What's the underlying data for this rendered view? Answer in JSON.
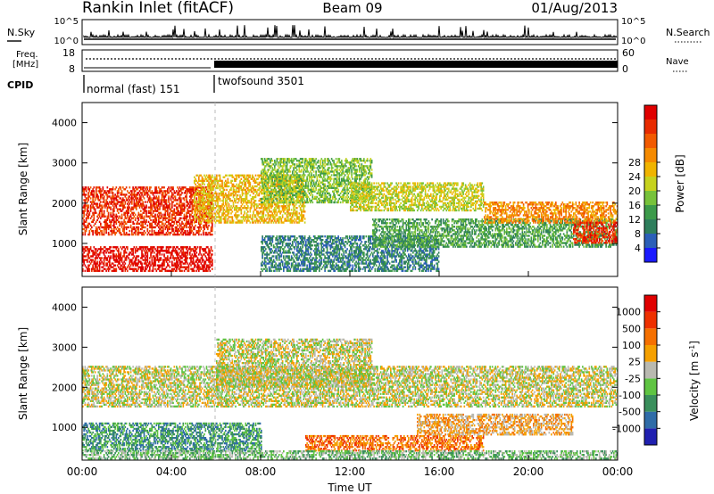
{
  "header": {
    "title": "Rankin Inlet (fitACF)",
    "beam": "Beam 09",
    "date": "01/Aug/2013"
  },
  "noise_panel": {
    "left_label": "N.Sky",
    "right_label": "N.Search",
    "left_ticks": [
      "10^5",
      "10^0"
    ],
    "right_ticks": [
      "10^5",
      "10^0"
    ]
  },
  "freq_panel": {
    "left_label_1": "Freq.",
    "left_label_2": "[MHz]",
    "right_label": "Nave",
    "left_ticks": [
      "18",
      "8"
    ],
    "right_ticks": [
      "60",
      "0"
    ]
  },
  "cpid": {
    "label": "CPID",
    "modes": [
      {
        "name": "normal (fast) 151",
        "start": "00:00",
        "end": "06:00"
      },
      {
        "name": "twofsound 3501",
        "start": "06:00",
        "end": "00:00"
      }
    ]
  },
  "x_axis": {
    "label": "Time UT",
    "ticks": [
      "00:00",
      "04:00",
      "08:00",
      "12:00",
      "16:00",
      "20:00",
      "00:00"
    ]
  },
  "chart_data": [
    {
      "type": "heatmap",
      "ylabel": "Slant Range [km]",
      "yticks": [
        1000,
        2000,
        3000,
        4000
      ],
      "ylim": [
        180,
        4500
      ],
      "xlim": [
        0,
        24
      ],
      "colorbar": {
        "label": "Power [dB]",
        "ticks": [
          "4",
          "8",
          "12",
          "16",
          "20",
          "24",
          "28"
        ],
        "colors": [
          "#1a1aff",
          "#2b5fb8",
          "#2e7e5c",
          "#3c9a4a",
          "#77c23a",
          "#c6d21e",
          "#f0b400",
          "#f58a00",
          "#f25a00",
          "#e82b00",
          "#e00000"
        ]
      },
      "bands": [
        {
          "t0": 0,
          "t1": 5.8,
          "r0": 1200,
          "r1": 2400,
          "level": 9
        },
        {
          "t0": 0,
          "t1": 5.8,
          "r0": 300,
          "r1": 900,
          "level": 10
        },
        {
          "t0": 5,
          "t1": 10,
          "r0": 1500,
          "r1": 2700,
          "level": 6
        },
        {
          "t0": 8,
          "t1": 13,
          "r0": 2000,
          "r1": 3100,
          "level": 4
        },
        {
          "t0": 8,
          "t1": 16,
          "r0": 300,
          "r1": 1200,
          "level": 2
        },
        {
          "t0": 12,
          "t1": 18,
          "r0": 1800,
          "r1": 2500,
          "level": 5
        },
        {
          "t0": 13,
          "t1": 24,
          "r0": 900,
          "r1": 1600,
          "level": 3
        },
        {
          "t0": 18,
          "t1": 24,
          "r0": 1500,
          "r1": 2000,
          "level": 7
        },
        {
          "t0": 22,
          "t1": 24,
          "r0": 1000,
          "r1": 1500,
          "level": 9
        }
      ]
    },
    {
      "type": "heatmap",
      "ylabel": "Slant Range [km]",
      "yticks": [
        1000,
        2000,
        3000,
        4000
      ],
      "ylim": [
        180,
        4500
      ],
      "xlim": [
        0,
        24
      ],
      "colorbar": {
        "label": "Velocity [m s^-1]",
        "ticks": [
          "1000",
          "500",
          "100",
          "25",
          "-25",
          "-100",
          "-500",
          "-1000"
        ],
        "colors": [
          "#2020b0",
          "#2f6ca8",
          "#3a8f5c",
          "#5fc442",
          "#b9b9b0",
          "#f5a000",
          "#f57000",
          "#ee3000",
          "#e00000"
        ]
      },
      "bands": [
        {
          "t0": 0,
          "t1": 24,
          "r0": 1500,
          "r1": 2500,
          "level": 4
        },
        {
          "t0": 6,
          "t1": 13,
          "r0": 2000,
          "r1": 3200,
          "level": 4
        },
        {
          "t0": 0,
          "t1": 8,
          "r0": 400,
          "r1": 1100,
          "level": 2
        },
        {
          "t0": 10,
          "t1": 18,
          "r0": 400,
          "r1": 800,
          "level": 6
        },
        {
          "t0": 15,
          "t1": 22,
          "r0": 800,
          "r1": 1300,
          "level": 5
        },
        {
          "t0": 0,
          "t1": 24,
          "r0": 200,
          "r1": 400,
          "level": 3
        }
      ]
    }
  ]
}
